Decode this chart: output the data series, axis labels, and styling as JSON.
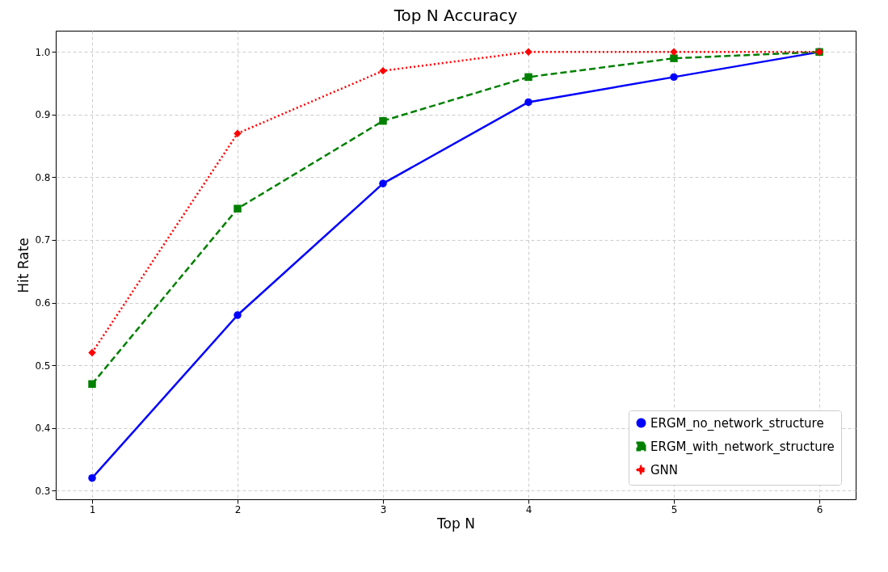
{
  "chart_data": {
    "type": "line",
    "title": "Top N Accuracy",
    "xlabel": "Top N",
    "ylabel": "Hit Rate",
    "x": [
      1,
      2,
      3,
      4,
      5,
      6
    ],
    "series": [
      {
        "name": "ERGM_no_network_structure",
        "color": "#0000ff",
        "marker": "circle",
        "line_style": "solid",
        "values": [
          0.32,
          0.58,
          0.79,
          0.92,
          0.96,
          1.0
        ]
      },
      {
        "name": "ERGM_with_network_structure",
        "color": "#008000",
        "marker": "square",
        "line_style": "dashed",
        "values": [
          0.47,
          0.75,
          0.89,
          0.96,
          0.99,
          1.0
        ]
      },
      {
        "name": "GNN",
        "color": "#ff0000",
        "marker": "diamond",
        "line_style": "dotted",
        "values": [
          0.52,
          0.87,
          0.97,
          1.0,
          1.0,
          1.0
        ]
      }
    ],
    "xlim": [
      0.75,
      6.25
    ],
    "xticks": [
      1,
      2,
      3,
      4,
      5,
      6
    ],
    "ylim": [
      0.286,
      1.034
    ],
    "yticks": [
      0.3,
      0.4,
      0.5,
      0.6,
      0.7,
      0.8,
      0.9,
      {
        "value": 1.0,
        "label": "1.0"
      }
    ],
    "grid": true,
    "legend": "bottom right"
  }
}
